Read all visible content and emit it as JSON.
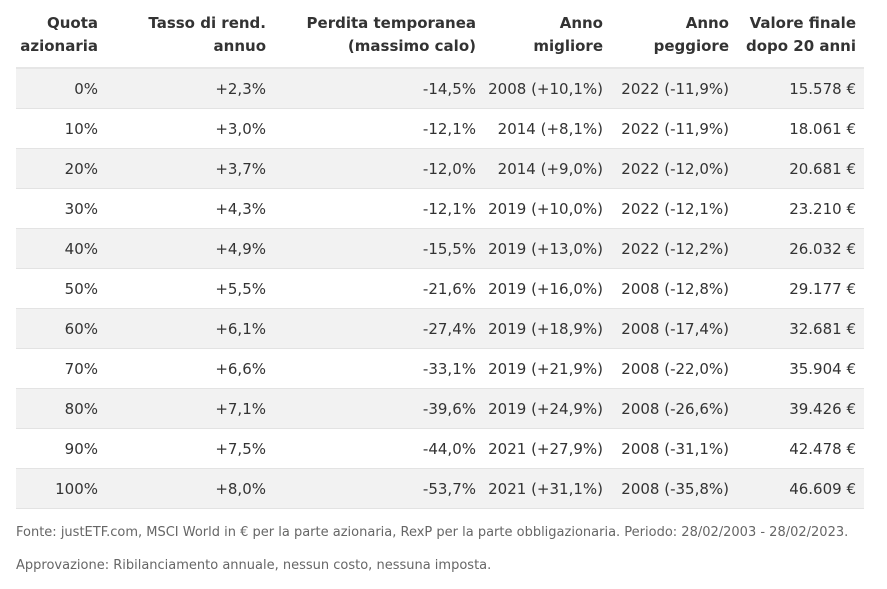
{
  "headers": [
    [
      "Quota",
      "azionaria"
    ],
    [
      "Tasso di rend.",
      "annuo"
    ],
    [
      "Perdita temporanea",
      "(massimo calo)"
    ],
    [
      "Anno",
      "migliore"
    ],
    [
      "Anno",
      "peggiore"
    ],
    [
      "Valore finale",
      "dopo 20 anni"
    ]
  ],
  "rows": [
    [
      "0%",
      "+2,3%",
      "-14,5%",
      "2008 (+10,1%)",
      "2022 (-11,9%)",
      "15.578 €"
    ],
    [
      "10%",
      "+3,0%",
      "-12,1%",
      "2014 (+8,1%)",
      "2022 (-11,9%)",
      "18.061 €"
    ],
    [
      "20%",
      "+3,7%",
      "-12,0%",
      "2014 (+9,0%)",
      "2022 (-12,0%)",
      "20.681 €"
    ],
    [
      "30%",
      "+4,3%",
      "-12,1%",
      "2019 (+10,0%)",
      "2022 (-12,1%)",
      "23.210 €"
    ],
    [
      "40%",
      "+4,9%",
      "-15,5%",
      "2019 (+13,0%)",
      "2022 (-12,2%)",
      "26.032 €"
    ],
    [
      "50%",
      "+5,5%",
      "-21,6%",
      "2019 (+16,0%)",
      "2008 (-12,8%)",
      "29.177 €"
    ],
    [
      "60%",
      "+6,1%",
      "-27,4%",
      "2019 (+18,9%)",
      "2008 (-17,4%)",
      "32.681 €"
    ],
    [
      "70%",
      "+6,6%",
      "-33,1%",
      "2019 (+21,9%)",
      "2008 (-22,0%)",
      "35.904 €"
    ],
    [
      "80%",
      "+7,1%",
      "-39,6%",
      "2019 (+24,9%)",
      "2008 (-26,6%)",
      "39.426 €"
    ],
    [
      "90%",
      "+7,5%",
      "-44,0%",
      "2021 (+27,9%)",
      "2008 (-31,1%)",
      "42.478 €"
    ],
    [
      "100%",
      "+8,0%",
      "-53,7%",
      "2021 (+31,1%)",
      "2008 (-35,8%)",
      "46.609 €"
    ]
  ],
  "notes": {
    "source": "Fonte: justETF.com, MSCI World in € per la parte azionaria, RexP per la parte obbligazionaria. Periodo: 28/02/2003 - 28/02/2023.",
    "assumptions": "Approvazione: Ribilanciamento annuale, nessun costo, nessuna imposta."
  },
  "colors": {
    "stripe": "#f2f2f2",
    "border": "#e3e3e3",
    "text": "#333333",
    "note_text": "#666666"
  }
}
